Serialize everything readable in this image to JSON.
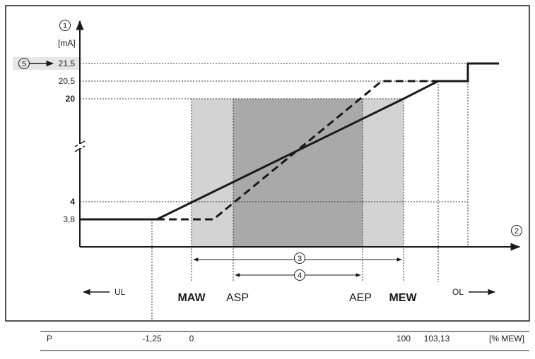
{
  "axes": {
    "y_marker": "1",
    "y_unit": "[mA]",
    "x_marker": "2"
  },
  "y_labels": {
    "v215": "21,5",
    "v205": "20,5",
    "v20": "20",
    "v4": "4",
    "v38": "3,8"
  },
  "callouts": {
    "c3": "3",
    "c4": "4",
    "c5": "5"
  },
  "range_labels": {
    "ul": "UL",
    "maw": "MAW",
    "asp": "ASP",
    "aep": "AEP",
    "mew": "MEW",
    "ol": "OL"
  },
  "p_row": {
    "label": "P",
    "v_neg": "-1,25",
    "v0": "0",
    "v100": "100",
    "v10313": "103,13",
    "unit": "[% MEW]"
  },
  "colors": {
    "light_band": "#d3d3d3",
    "dark_band": "#a9a9a9",
    "callout_box": "#e6e6e6",
    "line": "#1a1a1a"
  }
}
